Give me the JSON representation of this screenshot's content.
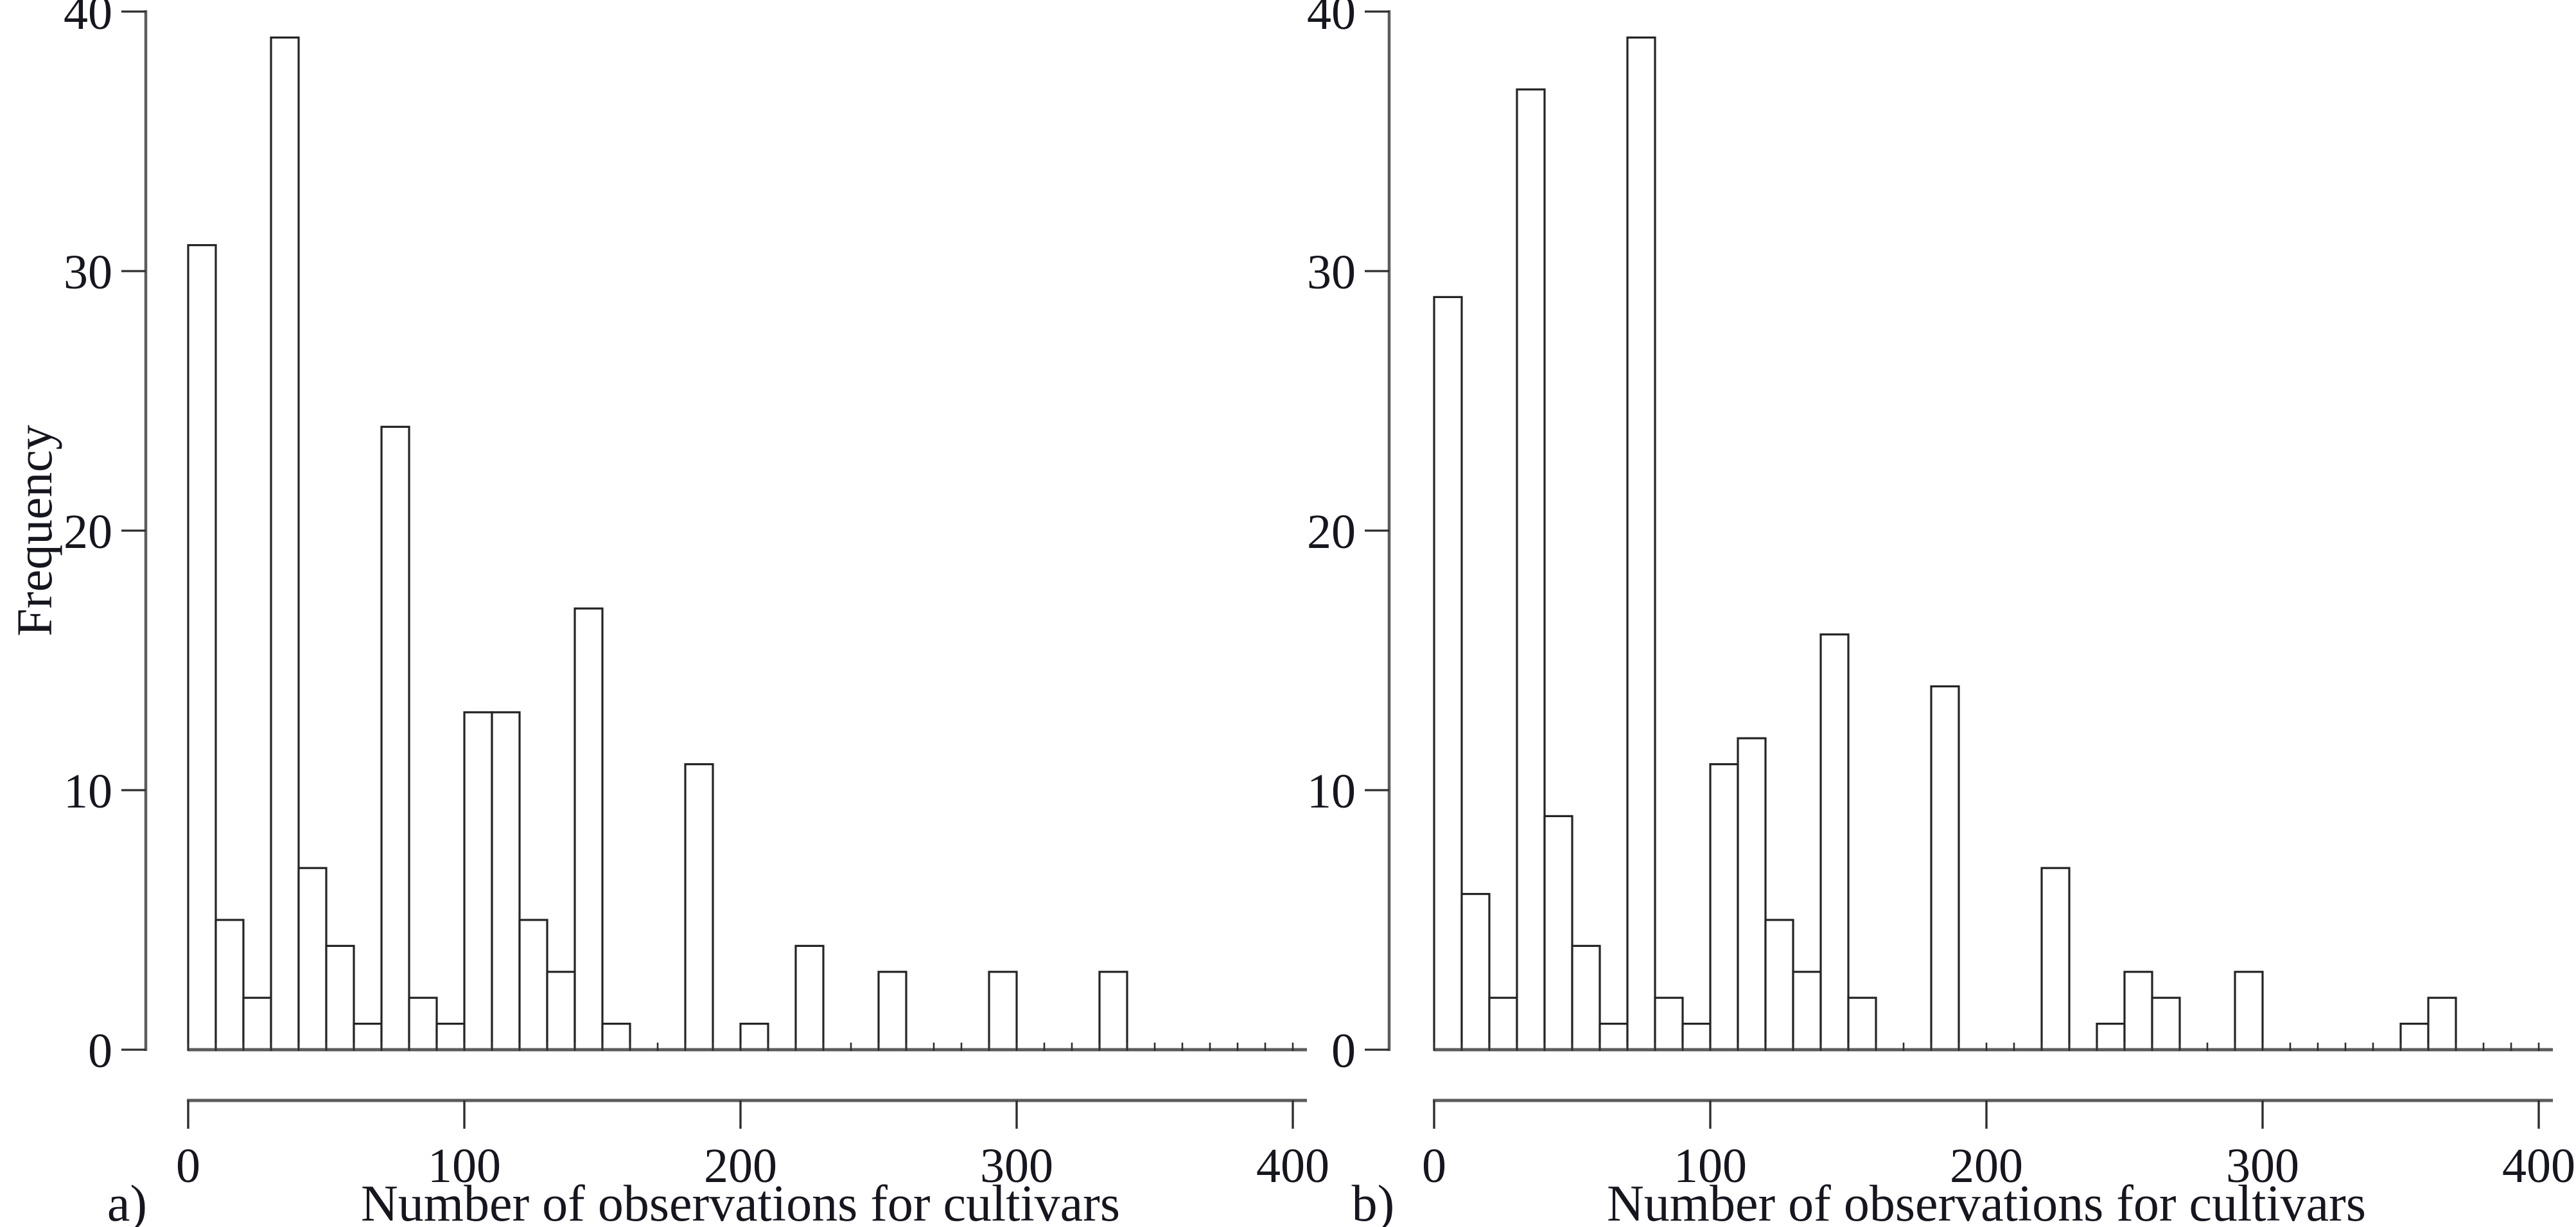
{
  "figure": {
    "background": "#ffffff",
    "text_color": "#16161f",
    "axis_color": "#5c5c5c",
    "tick_color": "#2e2e2e",
    "bar_stroke": "#242424",
    "bar_fill": "#ffffff"
  },
  "chart_data": [
    {
      "type": "bar",
      "panel_label": "a)",
      "xlabel": "Number of observations for cultivars",
      "ylabel": "Frequency",
      "xlim": [
        0,
        400
      ],
      "ylim": [
        0,
        40
      ],
      "x_ticks": [
        0,
        100,
        200,
        300,
        400
      ],
      "y_ticks": [
        0,
        10,
        20,
        30,
        40
      ],
      "bin_width": 10,
      "grid": false,
      "bins": [
        {
          "start": 0,
          "count": 31
        },
        {
          "start": 10,
          "count": 5
        },
        {
          "start": 20,
          "count": 2
        },
        {
          "start": 30,
          "count": 39
        },
        {
          "start": 40,
          "count": 7
        },
        {
          "start": 50,
          "count": 4
        },
        {
          "start": 60,
          "count": 1
        },
        {
          "start": 70,
          "count": 24
        },
        {
          "start": 80,
          "count": 2
        },
        {
          "start": 90,
          "count": 1
        },
        {
          "start": 100,
          "count": 13
        },
        {
          "start": 110,
          "count": 13
        },
        {
          "start": 120,
          "count": 5
        },
        {
          "start": 130,
          "count": 3
        },
        {
          "start": 140,
          "count": 17
        },
        {
          "start": 150,
          "count": 1
        },
        {
          "start": 180,
          "count": 11
        },
        {
          "start": 200,
          "count": 1
        },
        {
          "start": 220,
          "count": 4
        },
        {
          "start": 250,
          "count": 3
        },
        {
          "start": 290,
          "count": 3
        },
        {
          "start": 330,
          "count": 3
        }
      ]
    },
    {
      "type": "bar",
      "panel_label": "b)",
      "xlabel": "Number of observations for cultivars",
      "ylabel": "",
      "xlim": [
        0,
        400
      ],
      "ylim": [
        0,
        40
      ],
      "x_ticks": [
        0,
        100,
        200,
        300,
        400
      ],
      "y_ticks": [
        0,
        10,
        20,
        30,
        40
      ],
      "bin_width": 10,
      "grid": false,
      "bins": [
        {
          "start": 0,
          "count": 29
        },
        {
          "start": 10,
          "count": 6
        },
        {
          "start": 20,
          "count": 2
        },
        {
          "start": 30,
          "count": 37
        },
        {
          "start": 40,
          "count": 9
        },
        {
          "start": 50,
          "count": 4
        },
        {
          "start": 60,
          "count": 1
        },
        {
          "start": 70,
          "count": 39
        },
        {
          "start": 80,
          "count": 2
        },
        {
          "start": 90,
          "count": 1
        },
        {
          "start": 100,
          "count": 11
        },
        {
          "start": 110,
          "count": 12
        },
        {
          "start": 120,
          "count": 5
        },
        {
          "start": 130,
          "count": 3
        },
        {
          "start": 140,
          "count": 16
        },
        {
          "start": 150,
          "count": 2
        },
        {
          "start": 180,
          "count": 14
        },
        {
          "start": 220,
          "count": 7
        },
        {
          "start": 240,
          "count": 1
        },
        {
          "start": 250,
          "count": 3
        },
        {
          "start": 260,
          "count": 2
        },
        {
          "start": 290,
          "count": 3
        },
        {
          "start": 350,
          "count": 1
        },
        {
          "start": 360,
          "count": 2
        }
      ]
    }
  ]
}
